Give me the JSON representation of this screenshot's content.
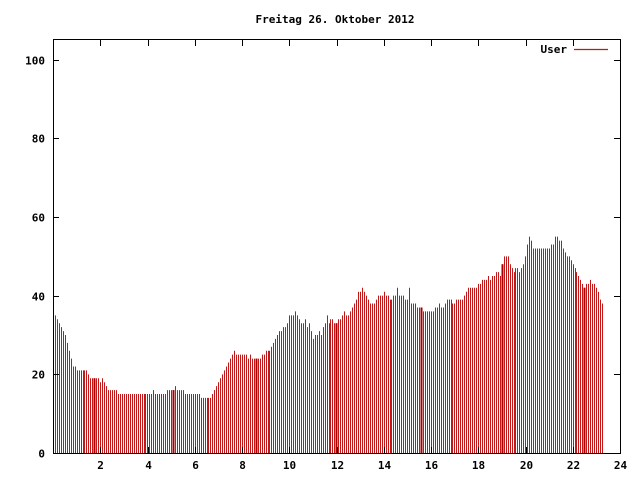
{
  "chart_data": {
    "type": "bar",
    "title": "Freitag 26. Oktober 2012",
    "xlabel": "",
    "ylabel": "",
    "xlim": [
      0,
      24
    ],
    "ylim": [
      0,
      105
    ],
    "x_ticks": [
      2,
      4,
      6,
      8,
      10,
      12,
      14,
      16,
      18,
      20,
      22,
      24
    ],
    "x_tick_labels": [
      "2",
      "4",
      "6",
      "8",
      "10",
      "12",
      "14",
      "16",
      "18",
      "20",
      "22",
      "24"
    ],
    "y_ticks": [
      0,
      20,
      40,
      60,
      80,
      100
    ],
    "y_tick_labels": [
      "0",
      "20",
      "40",
      "60",
      "80",
      "100"
    ],
    "grid": false,
    "legend": {
      "position": "top-right",
      "entries": [
        "User"
      ]
    },
    "colors": {
      "series": "#c01818",
      "highlight": "#aa0000",
      "axis": "#000000"
    },
    "bar_interval": 0.0833,
    "highlight_x": [
      1.75,
      5.08,
      8.58,
      12.0,
      15.58,
      19.0,
      22.5
    ],
    "series": [
      {
        "name": "User",
        "values": [
          40,
          35,
          34,
          33,
          32,
          31,
          30,
          28,
          26,
          24,
          22,
          22,
          21,
          21,
          21,
          21,
          21,
          21,
          20,
          19,
          19,
          19,
          19,
          19,
          18,
          19,
          18,
          17,
          16,
          16,
          16,
          16,
          16,
          15,
          15,
          15,
          15,
          15,
          15,
          15,
          15,
          15,
          15,
          15,
          15,
          15,
          15,
          15,
          15,
          15,
          15,
          16,
          15,
          15,
          15,
          15,
          15,
          15,
          16,
          16,
          16,
          16,
          17,
          16,
          16,
          16,
          16,
          15,
          15,
          15,
          15,
          15,
          15,
          15,
          15,
          14,
          14,
          14,
          14,
          14,
          14,
          15,
          16,
          17,
          18,
          19,
          20,
          21,
          22,
          23,
          24,
          25,
          26,
          25,
          25,
          25,
          25,
          25,
          25,
          24,
          25,
          24,
          24,
          24,
          24,
          24,
          25,
          25,
          26,
          26,
          26,
          27,
          28,
          29,
          30,
          31,
          31,
          32,
          32,
          33,
          35,
          35,
          35,
          36,
          35,
          34,
          33,
          33,
          34,
          32,
          33,
          31,
          29,
          30,
          30,
          31,
          30,
          32,
          33,
          35,
          33,
          34,
          34,
          33,
          33,
          34,
          34,
          35,
          36,
          35,
          35,
          36,
          37,
          38,
          39,
          41,
          41,
          42,
          41,
          40,
          39,
          38,
          38,
          38,
          39,
          40,
          40,
          40,
          41,
          40,
          40,
          39,
          39,
          40,
          40,
          42,
          40,
          40,
          40,
          39,
          39,
          42,
          38,
          38,
          38,
          37,
          37,
          37,
          36,
          36,
          36,
          36,
          36,
          36,
          37,
          37,
          38,
          37,
          37,
          38,
          39,
          39,
          39,
          38,
          38,
          39,
          39,
          39,
          39,
          40,
          41,
          42,
          42,
          42,
          42,
          42,
          43,
          43,
          44,
          44,
          44,
          45,
          44,
          45,
          45,
          46,
          46,
          45,
          48,
          50,
          50,
          50,
          48,
          47,
          46,
          47,
          47,
          46,
          47,
          48,
          50,
          53,
          55,
          54,
          52,
          52,
          52,
          52,
          52,
          52,
          52,
          52,
          52,
          53,
          53,
          55,
          55,
          54,
          54,
          52,
          51,
          50,
          50,
          49,
          48,
          47,
          46,
          45,
          44,
          43,
          42,
          43,
          43,
          44,
          43,
          43,
          42,
          41,
          39,
          38
        ]
      }
    ]
  }
}
